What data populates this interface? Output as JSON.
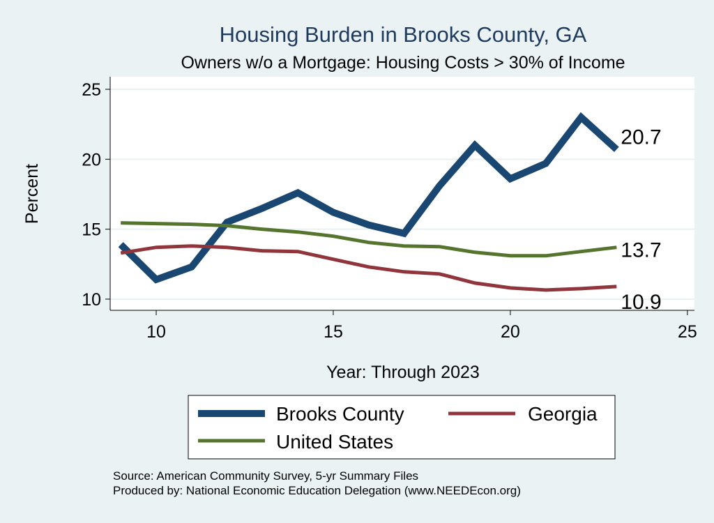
{
  "chart_data": {
    "type": "line",
    "title": "Housing Burden in Brooks County, GA",
    "subtitle": "Owners w/o a Mortgage: Housing Costs > 30% of Income",
    "xlabel": "Year: Through 2023",
    "ylabel": "Percent",
    "xlim": [
      8.7,
      25.2
    ],
    "ylim": [
      9.2,
      25.9
    ],
    "xticks": [
      10,
      15,
      20,
      25
    ],
    "yticks": [
      10,
      15,
      20,
      25
    ],
    "grid": true,
    "legend_position": "bottom",
    "series": [
      {
        "name": "Brooks County",
        "color": "#1a4771",
        "x": [
          9,
          10,
          11,
          12,
          13,
          14,
          15,
          16,
          17,
          18,
          19,
          20,
          21,
          22,
          23
        ],
        "values": [
          13.9,
          11.4,
          12.3,
          15.5,
          16.5,
          17.6,
          16.2,
          15.3,
          14.7,
          18.1,
          21.0,
          18.6,
          19.7,
          23.0,
          20.7
        ],
        "end_label": "20.7"
      },
      {
        "name": "Georgia",
        "color": "#90353b",
        "x": [
          9,
          10,
          11,
          12,
          13,
          14,
          15,
          16,
          17,
          18,
          19,
          20,
          21,
          22,
          23
        ],
        "values": [
          13.3,
          13.7,
          13.8,
          13.7,
          13.45,
          13.4,
          12.85,
          12.3,
          11.95,
          11.8,
          11.15,
          10.8,
          10.65,
          10.75,
          10.9
        ],
        "end_label": "10.9"
      },
      {
        "name": "United States",
        "color": "#55752f",
        "x": [
          9,
          10,
          11,
          12,
          13,
          14,
          15,
          16,
          17,
          18,
          19,
          20,
          21,
          22,
          23
        ],
        "values": [
          15.45,
          15.4,
          15.35,
          15.25,
          15.0,
          14.8,
          14.5,
          14.05,
          13.8,
          13.75,
          13.35,
          13.1,
          13.1,
          13.4,
          13.7
        ],
        "end_label": "13.7"
      }
    ]
  },
  "source_note": "Source: American Community Survey, 5-yr Summary Files",
  "producer_note": "Produced by: National Economic Education Delegation (www.NEEDEcon.org)"
}
